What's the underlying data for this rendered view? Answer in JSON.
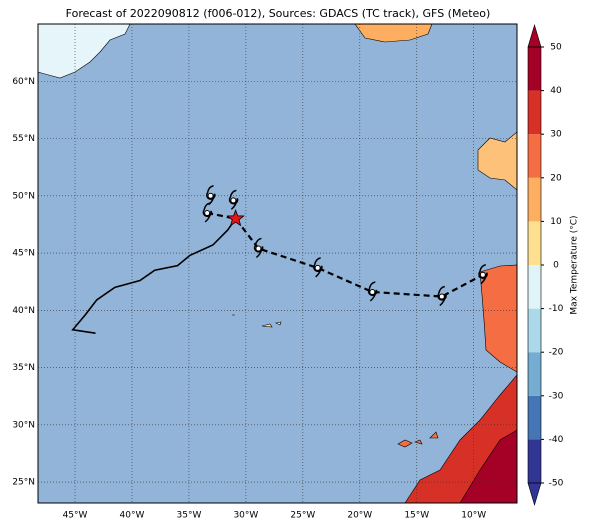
{
  "map": {
    "title": "Forecast of 2022090812 (f006-012), Sources: GDACS (TC track), GFS (Meteo)",
    "xlim": [
      -48.25,
      -6.2
    ],
    "ylim": [
      23.17,
      65
    ],
    "xticks": [
      {
        "value": -45,
        "label": "45°W"
      },
      {
        "value": -40,
        "label": "40°W"
      },
      {
        "value": -35,
        "label": "35°W"
      },
      {
        "value": -30,
        "label": "30°W"
      },
      {
        "value": -25,
        "label": "25°W"
      },
      {
        "value": -20,
        "label": "20°W"
      },
      {
        "value": -15,
        "label": "15°W"
      },
      {
        "value": -10,
        "label": "10°W"
      }
    ],
    "yticks": [
      {
        "value": 25,
        "label": "25°N"
      },
      {
        "value": 30,
        "label": "30°N"
      },
      {
        "value": 35,
        "label": "35°N"
      },
      {
        "value": 40,
        "label": "40°N"
      },
      {
        "value": 45,
        "label": "45°N"
      },
      {
        "value": 50,
        "label": "50°N"
      },
      {
        "value": 55,
        "label": "55°N"
      },
      {
        "value": 60,
        "label": "60°N"
      }
    ],
    "past_track": {
      "lon": [
        -30.9,
        -31.6,
        -32.9,
        -34.9,
        -36.0,
        -38.0,
        -39.3,
        -41.5,
        -43.1,
        -44.1,
        -45.2,
        -43.2
      ],
      "lat": [
        48.0,
        47.0,
        45.7,
        44.8,
        43.9,
        43.5,
        42.6,
        42.0,
        40.9,
        39.6,
        38.3,
        38.0
      ]
    },
    "forecast_track": {
      "lon": [
        -33.4,
        -30.9,
        -28.9,
        -23.7,
        -18.9,
        -12.8,
        -9.2
      ],
      "lat": [
        48.5,
        48.0,
        45.4,
        43.7,
        41.6,
        41.2,
        43.1
      ]
    },
    "extra_symbols": {
      "lon": [
        -33.1,
        -31.1
      ],
      "lat": [
        50.0,
        49.6
      ]
    },
    "current_position": {
      "lon": -30.9,
      "lat": 48.0
    },
    "colorbar": {
      "label": "Max Temperature (°C)",
      "ticks": [
        -50,
        -40,
        -30,
        -20,
        -10,
        0,
        10,
        20,
        30,
        40,
        50
      ],
      "colors": [
        "#313695",
        "#4575b4",
        "#74add1",
        "#abd9e9",
        "#e0f3f8",
        "#fee090",
        "#fdae61",
        "#f46d43",
        "#d73027",
        "#a50026"
      ]
    }
  }
}
